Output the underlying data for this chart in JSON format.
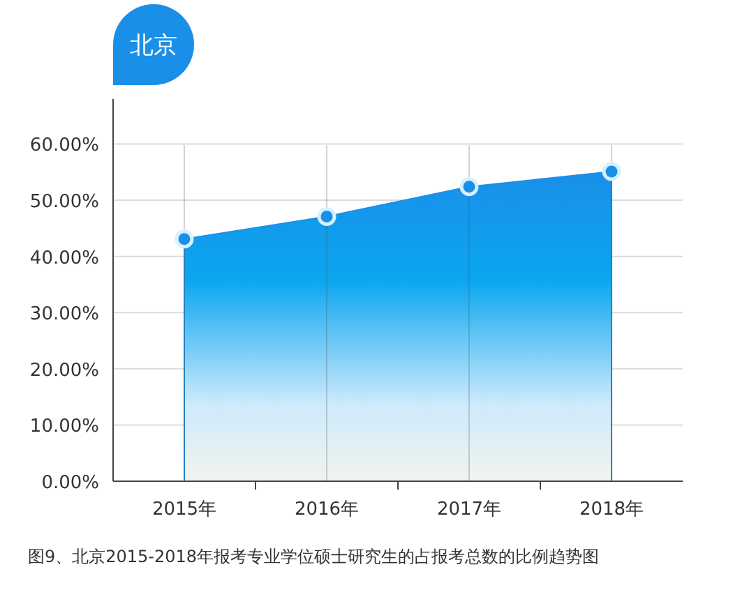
{
  "chart_data": {
    "type": "area",
    "title": "北京",
    "categories": [
      "2015年",
      "2016年",
      "2017年",
      "2018年"
    ],
    "series": [
      {
        "color": "#1a8fe8",
        "values": [
          43.1,
          47.1,
          52.4,
          55.1
        ]
      }
    ],
    "ylim": [
      0,
      68
    ],
    "yticks": [
      {
        "value": 0,
        "label": "0.00%"
      },
      {
        "value": 10,
        "label": "10.00%"
      },
      {
        "value": 20,
        "label": "20.00%"
      },
      {
        "value": 30,
        "label": "30.00%"
      },
      {
        "value": 40,
        "label": "40.00%"
      },
      {
        "value": 50,
        "label": "50.00%"
      },
      {
        "value": 60,
        "label": "60.00%"
      }
    ],
    "grid": true,
    "marker": "circle",
    "annotations": [
      "图9、北京2015-2018年报考专业学位硕士研究生的占报考总数的比例趋势图"
    ]
  }
}
